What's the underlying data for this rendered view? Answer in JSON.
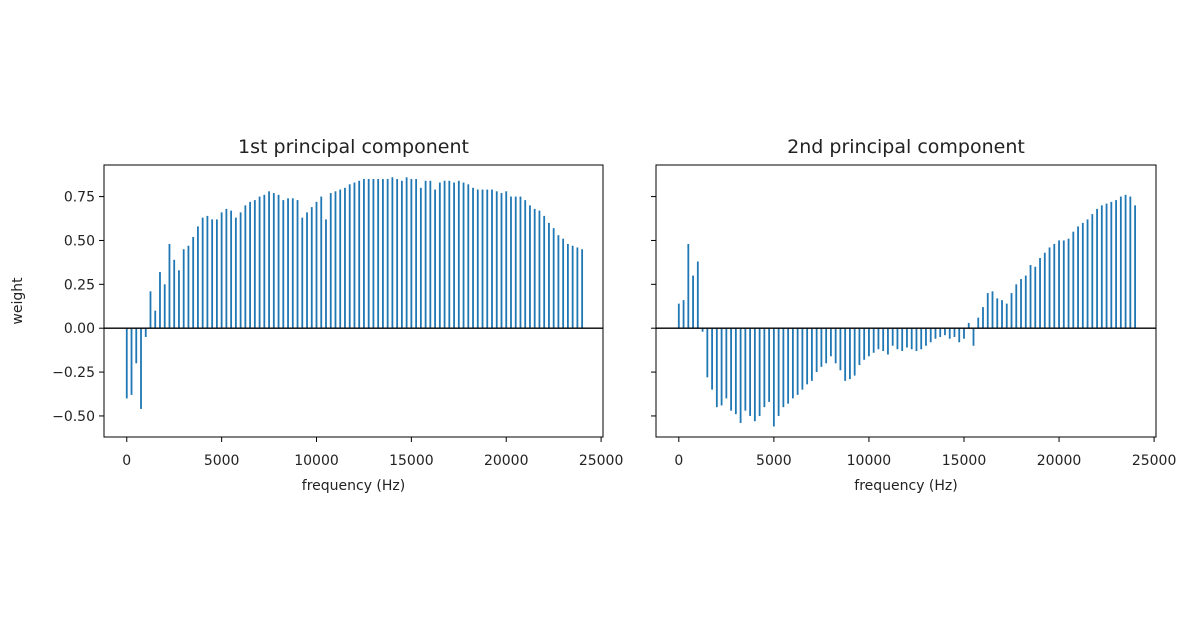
{
  "chart_data": [
    {
      "type": "bar",
      "title": "1st principal component",
      "xlabel": "frequency (Hz)",
      "ylabel": "weight",
      "color": "#1f77b4",
      "x": [
        0,
        250,
        500,
        750,
        1000,
        1250,
        1500,
        1750,
        2000,
        2250,
        2500,
        2750,
        3000,
        3250,
        3500,
        3750,
        4000,
        4250,
        4500,
        4750,
        5000,
        5250,
        5500,
        5750,
        6000,
        6250,
        6500,
        6750,
        7000,
        7250,
        7500,
        7750,
        8000,
        8250,
        8500,
        8750,
        9000,
        9250,
        9500,
        9750,
        10000,
        10250,
        10500,
        10750,
        11000,
        11250,
        11500,
        11750,
        12000,
        12250,
        12500,
        12750,
        13000,
        13250,
        13500,
        13750,
        14000,
        14250,
        14500,
        14750,
        15000,
        15250,
        15500,
        15750,
        16000,
        16250,
        16500,
        16750,
        17000,
        17250,
        17500,
        17750,
        18000,
        18250,
        18500,
        18750,
        19000,
        19250,
        19500,
        19750,
        20000,
        20250,
        20500,
        20750,
        21000,
        21250,
        21500,
        21750,
        22000,
        22250,
        22500,
        22750,
        23000,
        23250,
        23500,
        23750,
        24000
      ],
      "values": [
        -0.4,
        -0.38,
        -0.2,
        -0.46,
        -0.05,
        0.21,
        0.1,
        0.32,
        0.25,
        0.48,
        0.39,
        0.33,
        0.45,
        0.47,
        0.52,
        0.58,
        0.63,
        0.64,
        0.62,
        0.62,
        0.66,
        0.68,
        0.67,
        0.63,
        0.66,
        0.7,
        0.72,
        0.73,
        0.75,
        0.76,
        0.78,
        0.77,
        0.76,
        0.73,
        0.74,
        0.74,
        0.73,
        0.63,
        0.66,
        0.69,
        0.72,
        0.75,
        0.62,
        0.77,
        0.78,
        0.79,
        0.8,
        0.82,
        0.83,
        0.84,
        0.85,
        0.85,
        0.85,
        0.85,
        0.85,
        0.85,
        0.86,
        0.85,
        0.84,
        0.86,
        0.85,
        0.85,
        0.8,
        0.84,
        0.84,
        0.79,
        0.83,
        0.84,
        0.84,
        0.83,
        0.84,
        0.83,
        0.82,
        0.8,
        0.79,
        0.79,
        0.79,
        0.79,
        0.78,
        0.77,
        0.78,
        0.75,
        0.75,
        0.75,
        0.73,
        0.7,
        0.68,
        0.67,
        0.64,
        0.6,
        0.57,
        0.53,
        0.51,
        0.48,
        0.47,
        0.46,
        0.45
      ],
      "xlim": [
        -1200,
        25100
      ],
      "ylim": [
        -0.62,
        0.93
      ],
      "xticks": [
        0,
        5000,
        10000,
        15000,
        20000,
        25000
      ],
      "yticks": [
        {
          "value": -0.5,
          "label": "−0.50"
        },
        {
          "value": -0.25,
          "label": "−0.25"
        },
        {
          "value": 0,
          "label": "0.00"
        },
        {
          "value": 0.25,
          "label": "0.25"
        },
        {
          "value": 0.5,
          "label": "0.50"
        },
        {
          "value": 0.75,
          "label": "0.75"
        }
      ]
    },
    {
      "type": "bar",
      "title": "2nd principal component",
      "xlabel": "frequency (Hz)",
      "color": "#1f77b4",
      "x": [
        0,
        250,
        500,
        750,
        1000,
        1250,
        1500,
        1750,
        2000,
        2250,
        2500,
        2750,
        3000,
        3250,
        3500,
        3750,
        4000,
        4250,
        4500,
        4750,
        5000,
        5250,
        5500,
        5750,
        6000,
        6250,
        6500,
        6750,
        7000,
        7250,
        7500,
        7750,
        8000,
        8250,
        8500,
        8750,
        9000,
        9250,
        9500,
        9750,
        10000,
        10250,
        10500,
        10750,
        11000,
        11250,
        11500,
        11750,
        12000,
        12250,
        12500,
        12750,
        13000,
        13250,
        13500,
        13750,
        14000,
        14250,
        14500,
        14750,
        15000,
        15250,
        15500,
        15750,
        16000,
        16250,
        16500,
        16750,
        17000,
        17250,
        17500,
        17750,
        18000,
        18250,
        18500,
        18750,
        19000,
        19250,
        19500,
        19750,
        20000,
        20250,
        20500,
        20750,
        21000,
        21250,
        21500,
        21750,
        22000,
        22250,
        22500,
        22750,
        23000,
        23250,
        23500,
        23750,
        24000
      ],
      "values": [
        0.14,
        0.16,
        0.48,
        0.3,
        0.38,
        -0.02,
        -0.28,
        -0.35,
        -0.45,
        -0.44,
        -0.4,
        -0.47,
        -0.49,
        -0.54,
        -0.47,
        -0.5,
        -0.53,
        -0.5,
        -0.45,
        -0.42,
        -0.56,
        -0.5,
        -0.45,
        -0.43,
        -0.4,
        -0.38,
        -0.35,
        -0.32,
        -0.3,
        -0.25,
        -0.22,
        -0.2,
        -0.16,
        -0.2,
        -0.24,
        -0.3,
        -0.29,
        -0.27,
        -0.21,
        -0.18,
        -0.16,
        -0.14,
        -0.12,
        -0.13,
        -0.15,
        -0.1,
        -0.12,
        -0.13,
        -0.11,
        -0.12,
        -0.13,
        -0.12,
        -0.1,
        -0.08,
        -0.06,
        -0.05,
        -0.04,
        -0.06,
        -0.05,
        -0.08,
        -0.06,
        0.03,
        -0.1,
        0.06,
        0.12,
        0.2,
        0.21,
        0.17,
        0.16,
        0.14,
        0.2,
        0.25,
        0.28,
        0.3,
        0.36,
        0.35,
        0.4,
        0.43,
        0.46,
        0.48,
        0.5,
        0.5,
        0.51,
        0.55,
        0.58,
        0.6,
        0.62,
        0.65,
        0.68,
        0.7,
        0.71,
        0.72,
        0.73,
        0.75,
        0.76,
        0.75,
        0.7
      ],
      "xlim": [
        -1200,
        25100
      ],
      "ylim": [
        -0.62,
        0.93
      ],
      "xticks": [
        0,
        5000,
        10000,
        15000,
        20000,
        25000
      ],
      "yticks": [
        -0.5,
        -0.25,
        0,
        0.25,
        0.5,
        0.75
      ]
    }
  ]
}
